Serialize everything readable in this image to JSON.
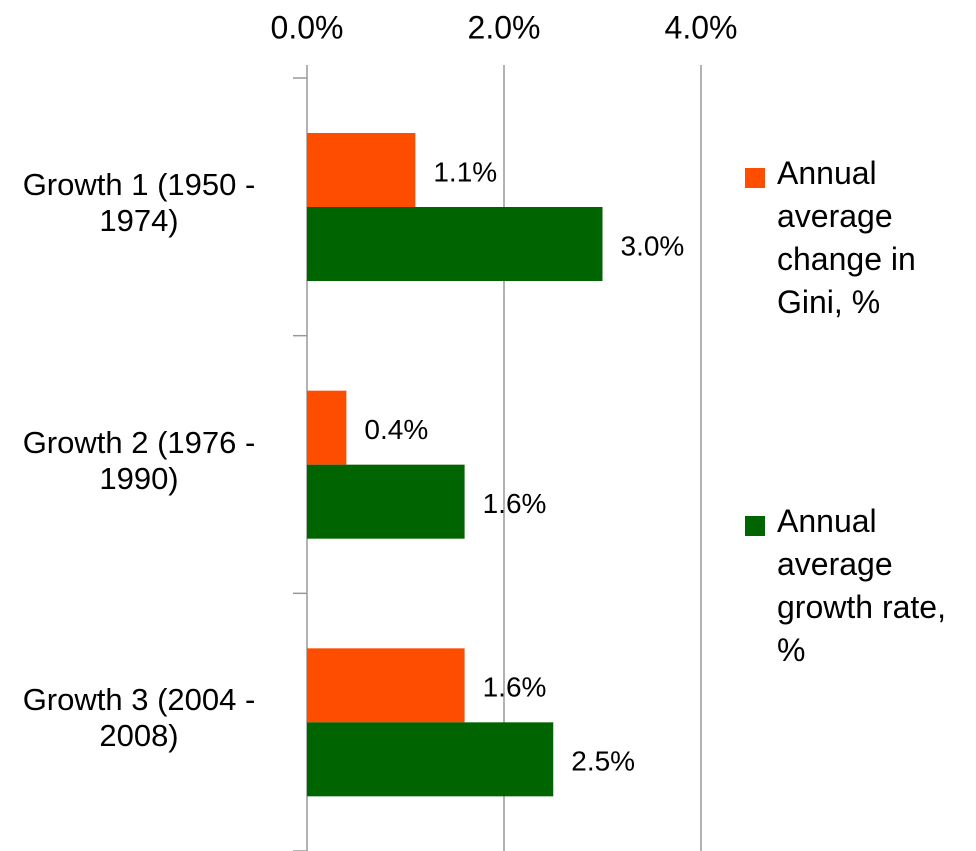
{
  "chart_data": {
    "type": "bar",
    "orientation": "horizontal",
    "categories": [
      "Growth 1 (1950 - 1974)",
      "Growth 2 (1976 - 1990)",
      "Growth 3 (2004 - 2008)"
    ],
    "series": [
      {
        "name": "Annual average change in Gini, %",
        "color": "#ff4d00",
        "values": [
          1.1,
          0.4,
          1.6
        ],
        "value_labels": [
          "1.1%",
          "0.4%",
          "1.6%"
        ]
      },
      {
        "name": "Annual average growth rate, %",
        "color": "#006400",
        "values": [
          3.0,
          1.6,
          2.5
        ],
        "value_labels": [
          "3.0%",
          "1.6%",
          "2.5%"
        ]
      }
    ],
    "xlim": [
      0,
      4
    ],
    "xticks": [
      {
        "value": 0,
        "label": "0.0%"
      },
      {
        "value": 2,
        "label": "2.0%"
      },
      {
        "value": 4,
        "label": "4.0%"
      }
    ],
    "grid": true,
    "legend": "right"
  }
}
